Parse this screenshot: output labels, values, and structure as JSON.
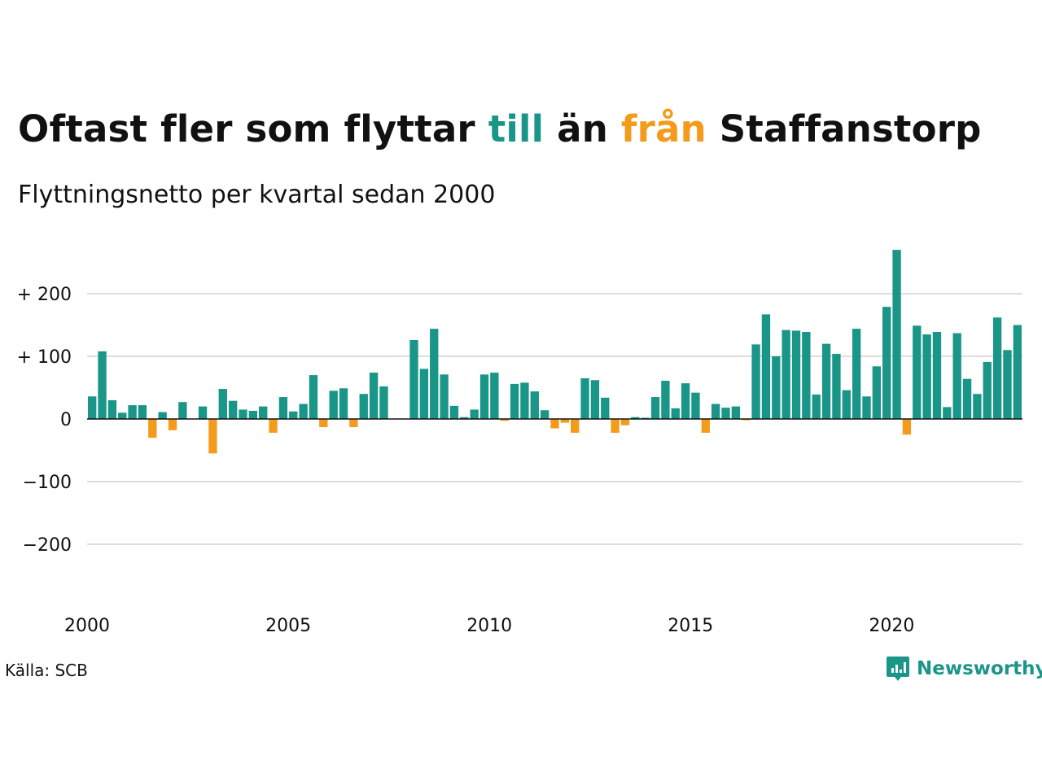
{
  "title": {
    "part1": "Oftast fler som flyttar ",
    "till": "till",
    "part2": " än ",
    "fran": "från",
    "part3": " Staffanstorp"
  },
  "subtitle": "Flyttningsnetto per kvartal sedan 2000",
  "source": "Källa: SCB",
  "brand": "Newsworthy",
  "colors": {
    "positive": "#1a9688",
    "negative": "#f59b1c",
    "grid": "#dddddd",
    "zero_line": "#111111",
    "brand": "#1a9688"
  },
  "chart_data": {
    "type": "bar",
    "title": "Oftast fler som flyttar till än från Staffanstorp",
    "subtitle": "Flyttningsnetto per kvartal sedan 2000",
    "ylim": [
      -280,
      280
    ],
    "yticks": [
      {
        "value": 200,
        "label": "+ 200"
      },
      {
        "value": 100,
        "label": "+ 100"
      },
      {
        "value": 0,
        "label": "0"
      },
      {
        "value": -100,
        "label": "−100"
      },
      {
        "value": -200,
        "label": "−200"
      }
    ],
    "xticks": [
      {
        "value": 2000,
        "label": "2000"
      },
      {
        "value": 2005,
        "label": "2005"
      },
      {
        "value": 2010,
        "label": "2010"
      },
      {
        "value": 2015,
        "label": "2015"
      },
      {
        "value": 2020,
        "label": "2020"
      }
    ],
    "grid": true,
    "start_year": 2000,
    "values": [
      36,
      108,
      30,
      10,
      22,
      22,
      -30,
      11,
      -18,
      27,
      0,
      20,
      -55,
      48,
      29,
      15,
      13,
      20,
      -22,
      35,
      12,
      24,
      70,
      -13,
      45,
      49,
      -13,
      40,
      74,
      52,
      0,
      0,
      126,
      80,
      144,
      71,
      21,
      3,
      15,
      71,
      74,
      -3,
      56,
      58,
      44,
      14,
      -15,
      -6,
      -22,
      65,
      62,
      34,
      -22,
      -10,
      3,
      2,
      35,
      61,
      17,
      57,
      42,
      -22,
      24,
      18,
      20,
      -2,
      119,
      167,
      100,
      142,
      141,
      139,
      39,
      120,
      104,
      46,
      144,
      36,
      84,
      179,
      270,
      -25,
      149,
      135,
      139,
      19,
      137,
      64,
      40,
      91,
      162,
      110,
      150
    ]
  }
}
